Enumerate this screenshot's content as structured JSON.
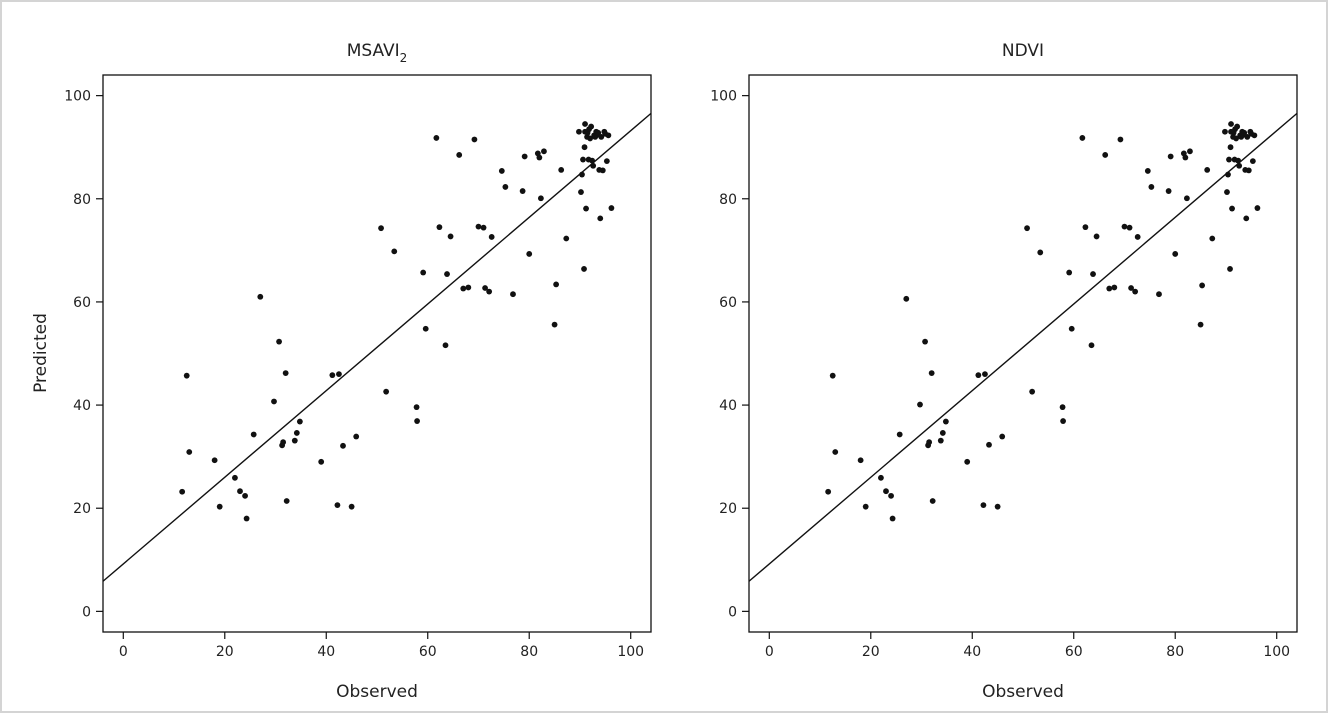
{
  "chart_data": [
    {
      "type": "scatter",
      "title": "MSAVI",
      "title_subscript": "2",
      "xlabel": "Observed",
      "ylabel": "Predicted",
      "xlim": [
        -4,
        104
      ],
      "ylim": [
        -4,
        104
      ],
      "x_ticks": [
        0,
        20,
        40,
        60,
        80,
        100
      ],
      "y_ticks": [
        0,
        20,
        40,
        60,
        80,
        100
      ],
      "grid": false,
      "fit_line": {
        "intercept": 9.2,
        "slope": 0.84
      },
      "points": [
        [
          11.6,
          23.2
        ],
        [
          12.5,
          45.7
        ],
        [
          13.0,
          30.9
        ],
        [
          18.0,
          29.3
        ],
        [
          19.0,
          20.3
        ],
        [
          22.0,
          25.9
        ],
        [
          23.0,
          23.3
        ],
        [
          24.0,
          22.4
        ],
        [
          24.3,
          18.0
        ],
        [
          25.7,
          34.3
        ],
        [
          27.0,
          61.0
        ],
        [
          29.7,
          40.7
        ],
        [
          30.7,
          52.3
        ],
        [
          31.3,
          32.2
        ],
        [
          31.5,
          32.8
        ],
        [
          32.0,
          46.2
        ],
        [
          32.2,
          21.4
        ],
        [
          33.8,
          33.1
        ],
        [
          34.2,
          34.6
        ],
        [
          34.8,
          36.8
        ],
        [
          39.0,
          29.0
        ],
        [
          41.2,
          45.8
        ],
        [
          42.2,
          20.6
        ],
        [
          42.5,
          46.0
        ],
        [
          43.3,
          32.1
        ],
        [
          45.0,
          20.3
        ],
        [
          45.9,
          33.9
        ],
        [
          50.8,
          74.3
        ],
        [
          51.8,
          42.6
        ],
        [
          53.4,
          69.8
        ],
        [
          57.8,
          39.6
        ],
        [
          57.9,
          36.9
        ],
        [
          59.1,
          65.7
        ],
        [
          59.6,
          54.8
        ],
        [
          61.7,
          91.8
        ],
        [
          62.3,
          74.5
        ],
        [
          63.5,
          51.6
        ],
        [
          63.8,
          65.4
        ],
        [
          64.5,
          72.7
        ],
        [
          66.2,
          88.5
        ],
        [
          67.0,
          62.6
        ],
        [
          68.0,
          62.8
        ],
        [
          69.2,
          91.5
        ],
        [
          70.0,
          74.6
        ],
        [
          71.0,
          74.4
        ],
        [
          71.3,
          62.7
        ],
        [
          72.1,
          62.0
        ],
        [
          72.6,
          72.6
        ],
        [
          74.6,
          85.4
        ],
        [
          75.3,
          82.3
        ],
        [
          76.8,
          61.5
        ],
        [
          78.7,
          81.5
        ],
        [
          79.1,
          88.2
        ],
        [
          80.0,
          69.3
        ],
        [
          81.7,
          88.8
        ],
        [
          82.0,
          88.0
        ],
        [
          82.3,
          80.1
        ],
        [
          82.9,
          89.2
        ],
        [
          85.0,
          55.6
        ],
        [
          85.3,
          63.4
        ],
        [
          86.3,
          85.6
        ],
        [
          87.3,
          72.3
        ],
        [
          89.8,
          93.0
        ],
        [
          90.2,
          81.3
        ],
        [
          90.4,
          84.7
        ],
        [
          90.6,
          87.6
        ],
        [
          90.8,
          66.4
        ],
        [
          90.9,
          90.0
        ],
        [
          91.0,
          93.0
        ],
        [
          91.0,
          94.5
        ],
        [
          91.2,
          78.1
        ],
        [
          91.4,
          92.0
        ],
        [
          91.5,
          92.8
        ],
        [
          91.7,
          87.6
        ],
        [
          91.8,
          93.5
        ],
        [
          92.0,
          91.7
        ],
        [
          92.2,
          94.0
        ],
        [
          92.4,
          87.4
        ],
        [
          92.6,
          86.4
        ],
        [
          92.8,
          92.3
        ],
        [
          93.0,
          92.0
        ],
        [
          93.2,
          93.0
        ],
        [
          93.4,
          92.4
        ],
        [
          93.6,
          92.8
        ],
        [
          93.8,
          85.6
        ],
        [
          94.0,
          76.2
        ],
        [
          94.2,
          92.0
        ],
        [
          94.5,
          85.5
        ],
        [
          94.8,
          93.0
        ],
        [
          95.0,
          92.6
        ],
        [
          95.3,
          87.3
        ],
        [
          95.6,
          92.3
        ],
        [
          96.2,
          78.2
        ]
      ]
    },
    {
      "type": "scatter",
      "title": "NDVI",
      "title_subscript": "",
      "xlabel": "Observed",
      "ylabel": "",
      "xlim": [
        -4,
        104
      ],
      "ylim": [
        -4,
        104
      ],
      "x_ticks": [
        0,
        20,
        40,
        60,
        80,
        100
      ],
      "y_ticks": [
        0,
        20,
        40,
        60,
        80,
        100
      ],
      "grid": false,
      "fit_line": {
        "intercept": 9.2,
        "slope": 0.84
      },
      "points": [
        [
          11.6,
          23.2
        ],
        [
          12.5,
          45.7
        ],
        [
          13.0,
          30.9
        ],
        [
          18.0,
          29.3
        ],
        [
          19.0,
          20.3
        ],
        [
          22.0,
          25.9
        ],
        [
          23.0,
          23.3
        ],
        [
          24.0,
          22.4
        ],
        [
          24.3,
          18.0
        ],
        [
          25.7,
          34.3
        ],
        [
          27.0,
          60.6
        ],
        [
          29.7,
          40.1
        ],
        [
          30.7,
          52.3
        ],
        [
          31.3,
          32.2
        ],
        [
          31.5,
          32.8
        ],
        [
          32.0,
          46.2
        ],
        [
          32.2,
          21.4
        ],
        [
          33.8,
          33.1
        ],
        [
          34.2,
          34.6
        ],
        [
          34.8,
          36.8
        ],
        [
          39.0,
          29.0
        ],
        [
          41.2,
          45.8
        ],
        [
          42.2,
          20.6
        ],
        [
          42.5,
          46.0
        ],
        [
          43.3,
          32.3
        ],
        [
          45.0,
          20.3
        ],
        [
          45.9,
          33.9
        ],
        [
          50.8,
          74.3
        ],
        [
          51.8,
          42.6
        ],
        [
          53.4,
          69.6
        ],
        [
          57.8,
          39.6
        ],
        [
          57.9,
          36.9
        ],
        [
          59.1,
          65.7
        ],
        [
          59.6,
          54.8
        ],
        [
          61.7,
          91.8
        ],
        [
          62.3,
          74.5
        ],
        [
          63.5,
          51.6
        ],
        [
          63.8,
          65.4
        ],
        [
          64.5,
          72.7
        ],
        [
          66.2,
          88.5
        ],
        [
          67.0,
          62.6
        ],
        [
          68.0,
          62.8
        ],
        [
          69.2,
          91.5
        ],
        [
          70.0,
          74.6
        ],
        [
          71.0,
          74.4
        ],
        [
          71.3,
          62.7
        ],
        [
          72.1,
          62.0
        ],
        [
          72.6,
          72.6
        ],
        [
          74.6,
          85.4
        ],
        [
          75.3,
          82.3
        ],
        [
          76.8,
          61.5
        ],
        [
          78.7,
          81.5
        ],
        [
          79.1,
          88.2
        ],
        [
          80.0,
          69.3
        ],
        [
          81.7,
          88.8
        ],
        [
          82.0,
          88.0
        ],
        [
          82.3,
          80.1
        ],
        [
          82.9,
          89.2
        ],
        [
          85.0,
          55.6
        ],
        [
          85.3,
          63.2
        ],
        [
          86.3,
          85.6
        ],
        [
          87.3,
          72.3
        ],
        [
          89.8,
          93.0
        ],
        [
          90.2,
          81.3
        ],
        [
          90.4,
          84.7
        ],
        [
          90.6,
          87.6
        ],
        [
          90.8,
          66.4
        ],
        [
          90.9,
          90.0
        ],
        [
          91.0,
          93.0
        ],
        [
          91.0,
          94.5
        ],
        [
          91.2,
          78.1
        ],
        [
          91.4,
          92.0
        ],
        [
          91.5,
          92.8
        ],
        [
          91.7,
          87.6
        ],
        [
          91.8,
          93.5
        ],
        [
          92.0,
          91.7
        ],
        [
          92.2,
          94.0
        ],
        [
          92.4,
          87.4
        ],
        [
          92.6,
          86.4
        ],
        [
          92.8,
          92.3
        ],
        [
          93.0,
          92.0
        ],
        [
          93.2,
          93.0
        ],
        [
          93.4,
          92.4
        ],
        [
          93.6,
          92.8
        ],
        [
          93.8,
          85.6
        ],
        [
          94.0,
          76.2
        ],
        [
          94.2,
          92.0
        ],
        [
          94.5,
          85.5
        ],
        [
          94.8,
          93.0
        ],
        [
          95.0,
          92.6
        ],
        [
          95.3,
          87.3
        ],
        [
          95.6,
          92.3
        ],
        [
          96.2,
          78.2
        ]
      ]
    }
  ]
}
